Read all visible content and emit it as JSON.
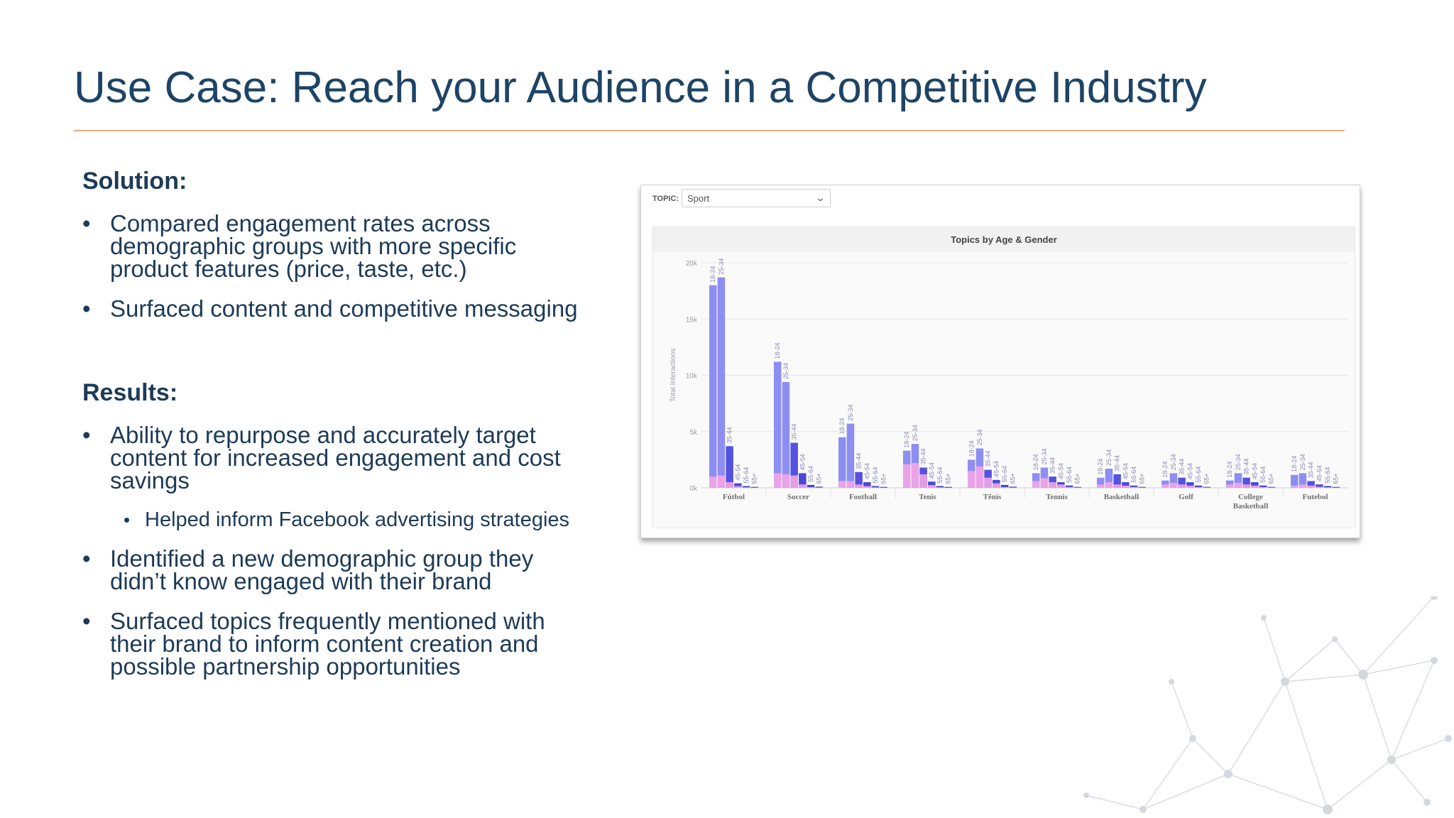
{
  "slide": {
    "title": "Use Case: Reach your Audience in a Competitive Industry"
  },
  "solution": {
    "heading": "Solution:",
    "bullets": [
      "Compared engagement rates across demographic groups with more specific product features (price, taste, etc.)",
      "Surfaced content and competitive messaging"
    ]
  },
  "results": {
    "heading": "Results:",
    "bullets": [
      "Ability to repurpose and accurately target content for increased engagement and cost savings",
      "Identified a new demographic group they didn’t know engaged with their brand",
      "Surfaced topics frequently mentioned with their brand to inform content creation and possible partnership opportunities"
    ],
    "sub_bullets": [
      "Helped inform Facebook advertising strategies"
    ]
  },
  "topic_filter": {
    "label": "TOPIC:",
    "value": "Sport"
  },
  "chart_data": {
    "type": "bar",
    "title": "Topics by Age & Gender",
    "ylabel": "Total Interactions",
    "xlabel": "",
    "ylim": [
      0,
      20000
    ],
    "yticks": [
      0,
      5000,
      10000,
      15000,
      20000
    ],
    "ytick_labels": [
      "0k",
      "5k",
      "10k",
      "15k",
      "20k"
    ],
    "age_groups": [
      "18-24",
      "25-34",
      "35-44",
      "45-54",
      "55-64",
      "65+"
    ],
    "categories": [
      "Fútbol",
      "Soccer",
      "Football",
      "Tenis",
      "Tênis",
      "Tennis",
      "Basketball",
      "Golf",
      "College Basketball",
      "Futebol"
    ],
    "series": [
      {
        "values": [
          [
            18000,
            18700,
            3700,
            400,
            150,
            80
          ],
          [
            11200,
            9400,
            4000,
            1300,
            250,
            100
          ],
          [
            4500,
            5700,
            1400,
            500,
            150,
            80
          ],
          [
            3300,
            3900,
            1800,
            550,
            150,
            80
          ],
          [
            2500,
            3500,
            1600,
            700,
            250,
            100
          ],
          [
            1300,
            1800,
            1000,
            500,
            200,
            80
          ],
          [
            900,
            1700,
            1200,
            500,
            200,
            80
          ],
          [
            650,
            1300,
            900,
            500,
            200,
            80
          ],
          [
            650,
            1300,
            900,
            500,
            200,
            80
          ],
          [
            1150,
            1300,
            600,
            300,
            150,
            80
          ]
        ]
      },
      {
        "values": [
          [
            1000,
            1100,
            500,
            150,
            50,
            20
          ],
          [
            1300,
            1200,
            1100,
            300,
            80,
            30
          ],
          [
            600,
            600,
            300,
            150,
            50,
            20
          ],
          [
            2100,
            2200,
            1200,
            250,
            50,
            20
          ],
          [
            1500,
            1900,
            900,
            400,
            80,
            30
          ],
          [
            600,
            850,
            500,
            300,
            80,
            30
          ],
          [
            300,
            500,
            300,
            200,
            80,
            30
          ],
          [
            300,
            450,
            300,
            200,
            80,
            30
          ],
          [
            300,
            450,
            300,
            200,
            80,
            30
          ],
          [
            200,
            300,
            200,
            100,
            50,
            20
          ]
        ]
      }
    ],
    "colors": {
      "age_fill": [
        "#8d8ef2",
        "#8d8ef2",
        "#5552df",
        "#4b48d8",
        "#3a3bcf",
        "#3a3bcf"
      ],
      "secondary": "#f3a5e6",
      "gridline": "#e6e6e6",
      "tick_text": "#9a9aa8",
      "category_text": "#707070"
    },
    "grid": true,
    "legend": "none"
  },
  "decor": {
    "network_color": "#d9dde2"
  }
}
